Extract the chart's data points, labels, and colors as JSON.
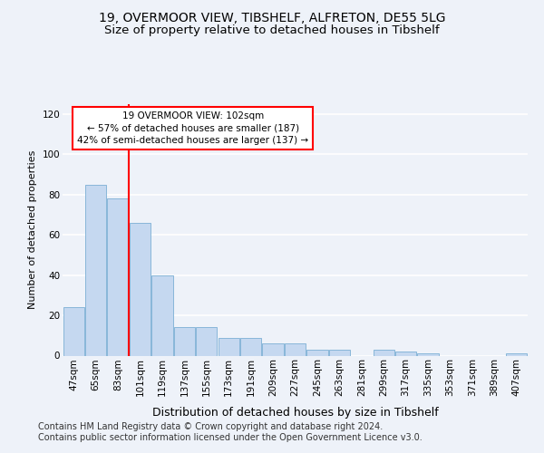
{
  "title1": "19, OVERMOOR VIEW, TIBSHELF, ALFRETON, DE55 5LG",
  "title2": "Size of property relative to detached houses in Tibshelf",
  "xlabel": "Distribution of detached houses by size in Tibshelf",
  "ylabel": "Number of detached properties",
  "categories": [
    "47sqm",
    "65sqm",
    "83sqm",
    "101sqm",
    "119sqm",
    "137sqm",
    "155sqm",
    "173sqm",
    "191sqm",
    "209sqm",
    "227sqm",
    "245sqm",
    "263sqm",
    "281sqm",
    "299sqm",
    "317sqm",
    "335sqm",
    "353sqm",
    "371sqm",
    "389sqm",
    "407sqm"
  ],
  "values": [
    24,
    85,
    78,
    66,
    40,
    14,
    14,
    9,
    9,
    6,
    6,
    3,
    3,
    0,
    3,
    2,
    1,
    0,
    0,
    0,
    1
  ],
  "bar_color": "#c5d8f0",
  "bar_edge_color": "#7bafd4",
  "annotation_line1": "19 OVERMOOR VIEW: 102sqm",
  "annotation_line2": "← 57% of detached houses are smaller (187)",
  "annotation_line3": "42% of semi-detached houses are larger (137) →",
  "red_line_idx": 3,
  "ylim": [
    0,
    125
  ],
  "yticks": [
    0,
    20,
    40,
    60,
    80,
    100,
    120
  ],
  "background_color": "#eef2f9",
  "grid_color": "#ffffff",
  "title1_fontsize": 10,
  "title2_fontsize": 9.5,
  "xlabel_fontsize": 9,
  "ylabel_fontsize": 8,
  "tick_fontsize": 7.5,
  "ann_fontsize": 7.5,
  "footer_fontsize": 7
}
